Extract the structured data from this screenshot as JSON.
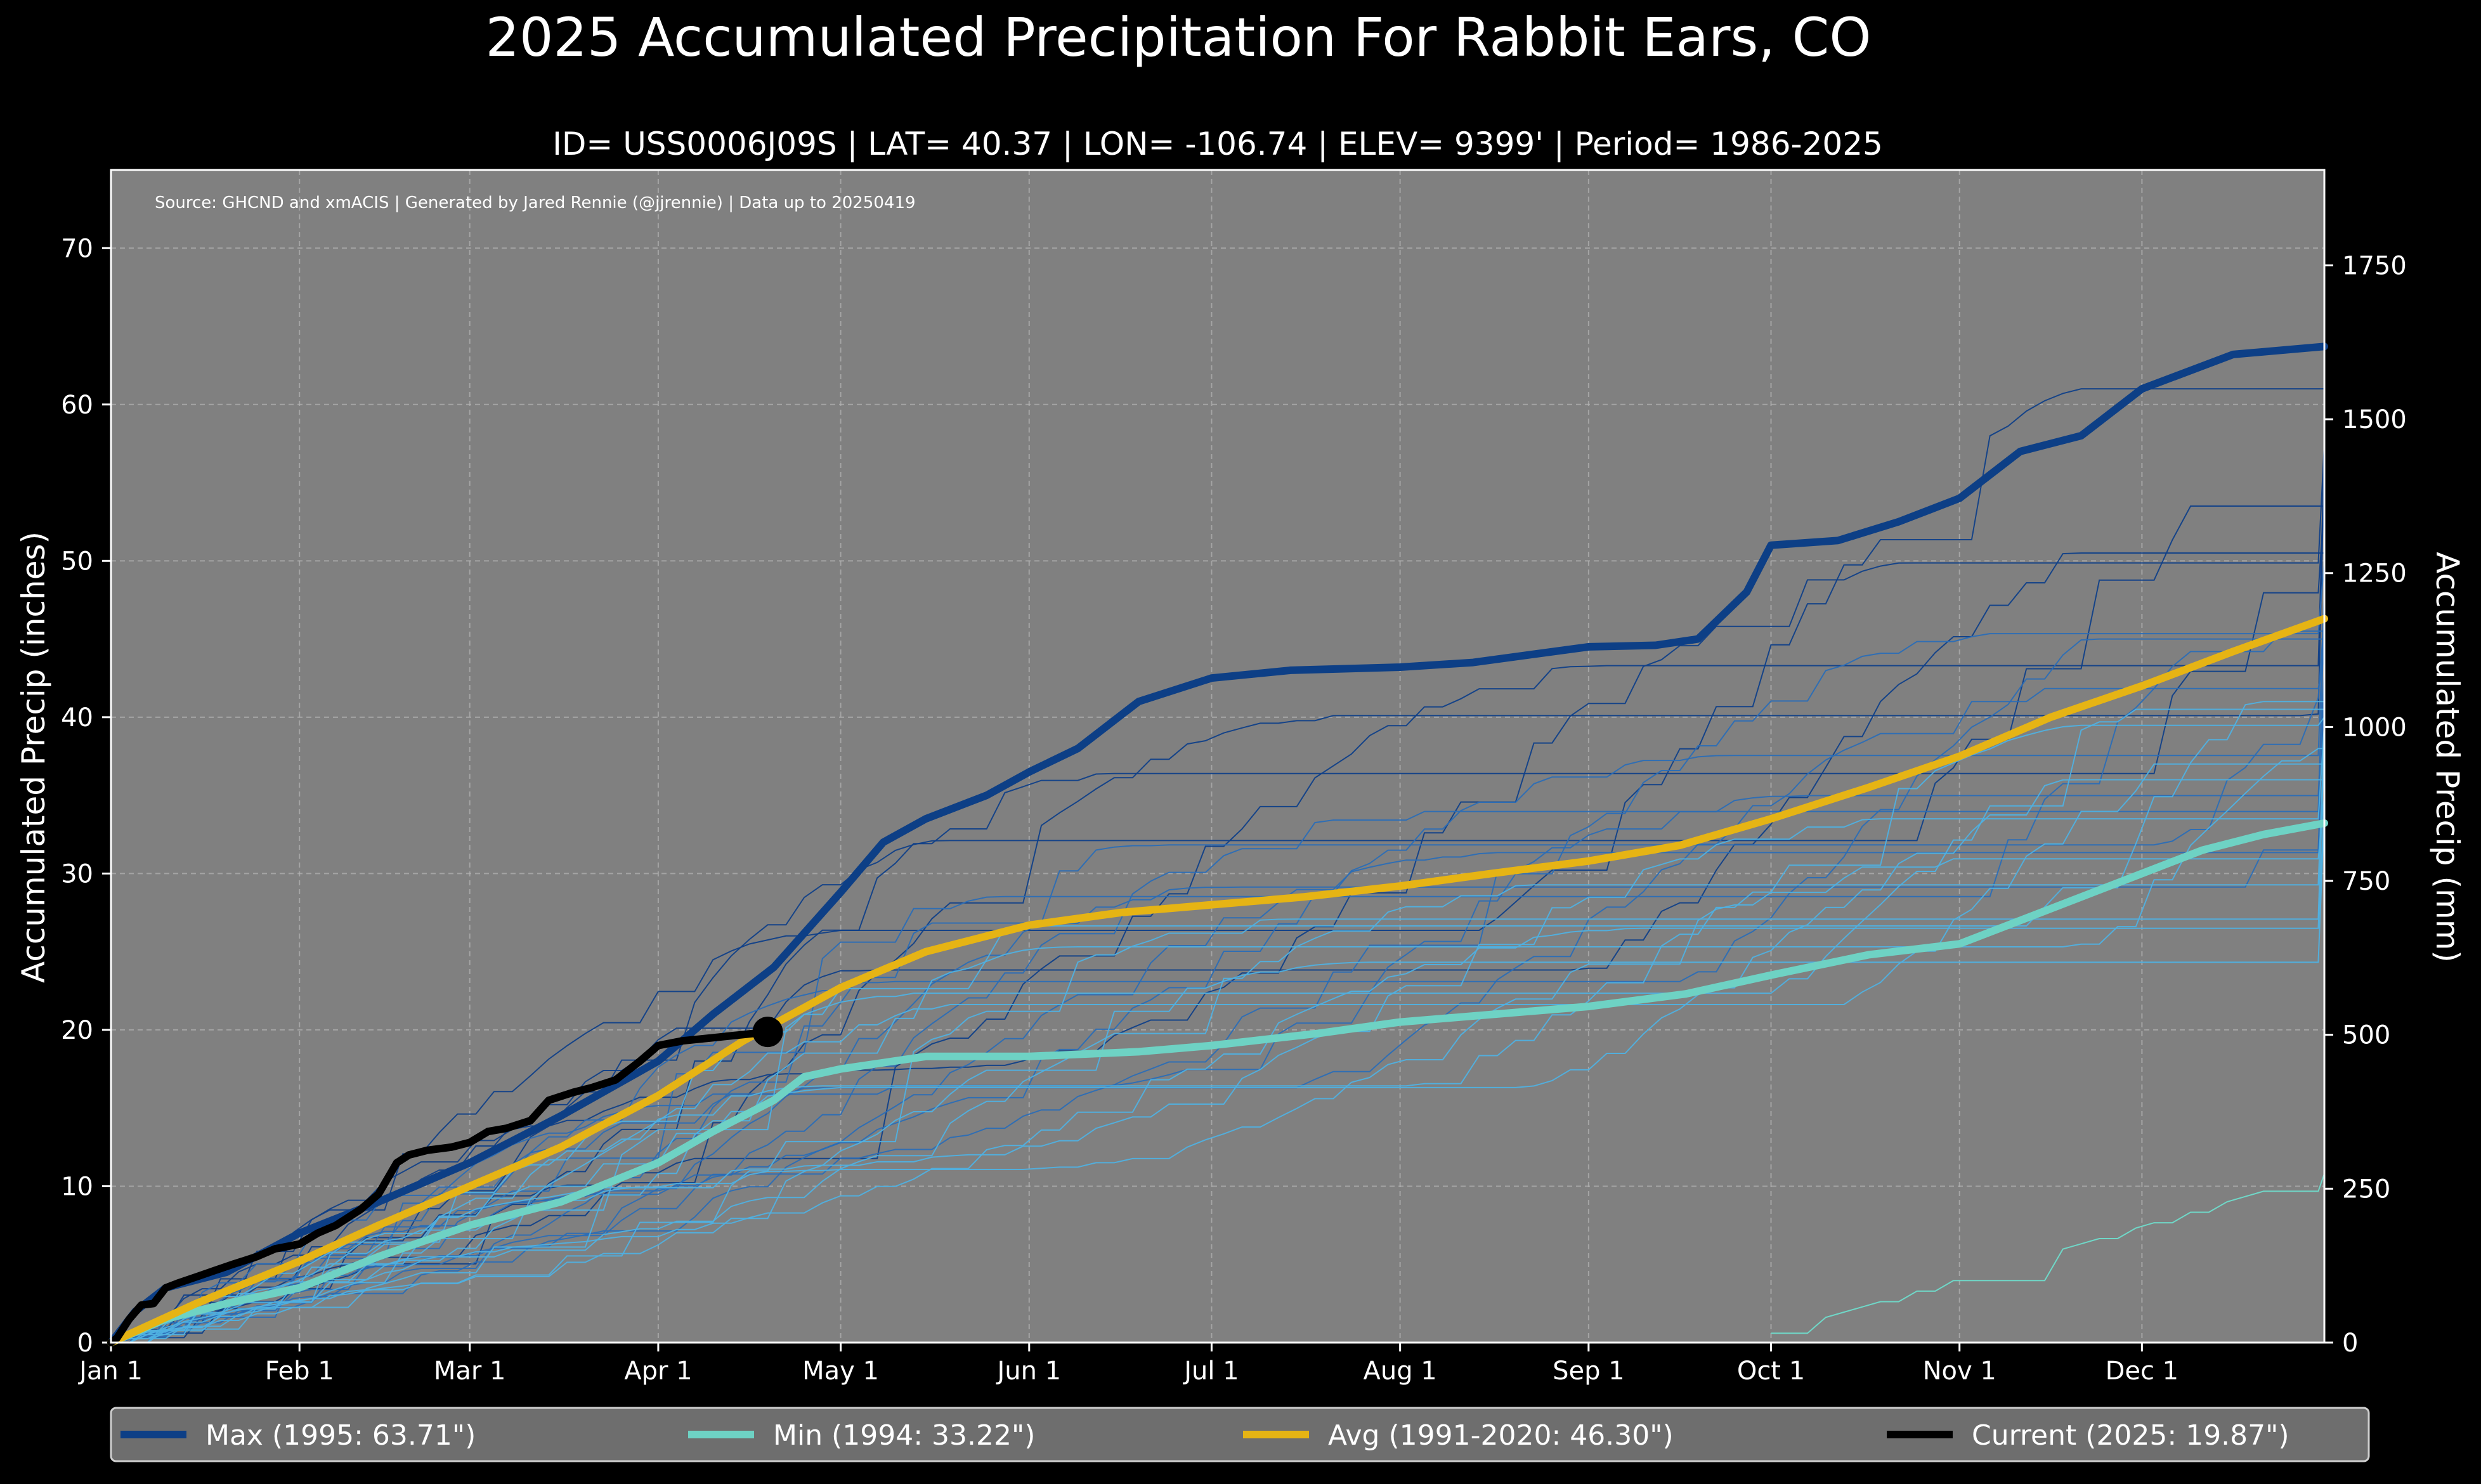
{
  "chart_data": {
    "type": "line",
    "title": "2025 Accumulated Precipitation For Rabbit Ears, CO",
    "subtitle": "ID= USS0006J09S | LAT= 40.37 | LON= -106.74 | ELEV= 9399' | Period= 1986-2025",
    "source_note": "Source: GHCND and xmACIS | Generated by Jared Rennie (@jjrennie) | Data up to 20250419",
    "xlabel": "",
    "ylabel": "Accumulated Precip (inches)",
    "ylabel_right": "Accumulated Precip (mm)",
    "xlim_day": [
      1,
      365
    ],
    "ylim": [
      0,
      75
    ],
    "ylim_right_mm": [
      0,
      1905
    ],
    "x_tick_labels": [
      "Jan 1",
      "Feb 1",
      "Mar 1",
      "Apr 1",
      "May 1",
      "Jun 1",
      "Jul 1",
      "Aug 1",
      "Sep 1",
      "Oct 1",
      "Nov 1",
      "Dec 1"
    ],
    "x_tick_days": [
      1,
      32,
      60,
      91,
      121,
      152,
      182,
      213,
      244,
      274,
      305,
      335
    ],
    "y_ticks": [
      0,
      10,
      20,
      30,
      40,
      50,
      60,
      70
    ],
    "y_ticks_right_mm": [
      0,
      250,
      500,
      750,
      1000,
      1250,
      1500,
      1750
    ],
    "grid": true,
    "colors": {
      "background": "#000000",
      "plot_bg": "#808080",
      "grid": "#b4b4b4",
      "max": "#0d3f86",
      "min": "#6ed2c4",
      "avg": "#e6b414",
      "current": "#000000",
      "legend_bg": "#6e6e6e",
      "year_dark": "#0f3f88",
      "year_mid": "#2a6db6",
      "year_light": "#4fb0e0"
    },
    "legend": {
      "placement": "bottom",
      "items": [
        {
          "key": "max",
          "label": "Max (1995:  63.71\")"
        },
        {
          "key": "min",
          "label": "Min (1994:  33.22\")"
        },
        {
          "key": "avg",
          "label": "Avg (1991-2020:  46.30\")"
        },
        {
          "key": "current",
          "label": "Current (2025:  19.87\")"
        }
      ]
    },
    "series": [
      {
        "key": "max",
        "name": "Max (1995)",
        "x": [
          1,
          5,
          10,
          20,
          32,
          45,
          60,
          75,
          91,
          100,
          110,
          121,
          128,
          135,
          145,
          152,
          160,
          170,
          182,
          195,
          213,
          225,
          244,
          255,
          262,
          270,
          274,
          285,
          295,
          305,
          315,
          325,
          335,
          350,
          365
        ],
        "values": [
          0,
          2,
          3.5,
          4.5,
          7,
          9,
          11.5,
          14.5,
          18,
          21,
          24,
          28.8,
          32,
          33.5,
          35,
          36.5,
          38,
          41,
          42.5,
          43,
          43.2,
          43.5,
          44.5,
          44.6,
          45,
          48,
          51,
          51.3,
          52.5,
          54,
          57,
          58,
          61,
          63.2,
          63.71
        ]
      },
      {
        "key": "min",
        "name": "Min (1994)",
        "x": [
          1,
          10,
          20,
          32,
          45,
          60,
          75,
          91,
          100,
          110,
          115,
          121,
          135,
          152,
          170,
          182,
          200,
          213,
          244,
          260,
          274,
          290,
          305,
          315,
          325,
          335,
          345,
          355,
          365
        ],
        "values": [
          0,
          1.5,
          2.5,
          3.5,
          5.5,
          7.5,
          9,
          11.5,
          13.5,
          15.5,
          17,
          17.5,
          18.3,
          18.3,
          18.6,
          19,
          19.8,
          20.5,
          21.5,
          22.3,
          23.5,
          24.8,
          25.5,
          27,
          28.5,
          30,
          31.5,
          32.5,
          33.22
        ]
      },
      {
        "key": "avg",
        "name": "Avg (1991-2020)",
        "x": [
          1,
          15,
          32,
          45,
          60,
          75,
          91,
          105,
          121,
          135,
          152,
          167,
          182,
          197,
          213,
          228,
          244,
          259,
          274,
          290,
          305,
          320,
          335,
          350,
          365
        ],
        "values": [
          0,
          2.5,
          5.2,
          7.5,
          10,
          12.5,
          15.8,
          19.3,
          22.7,
          25,
          26.7,
          27.5,
          28,
          28.5,
          29.2,
          30,
          30.8,
          31.8,
          33.5,
          35.5,
          37.5,
          40,
          42,
          44.2,
          46.3
        ]
      },
      {
        "key": "current",
        "name": "Current (2025)",
        "x": [
          1,
          2,
          4,
          6,
          8,
          10,
          12,
          15,
          18,
          21,
          25,
          28,
          32,
          35,
          38,
          42,
          45,
          48,
          50,
          53,
          57,
          60,
          63,
          66,
          70,
          73,
          77,
          80,
          84,
          88,
          91,
          95,
          100,
          105,
          109
        ],
        "values": [
          0,
          0.3,
          1.5,
          2.4,
          2.5,
          3.5,
          3.8,
          4.2,
          4.6,
          5.0,
          5.5,
          6.0,
          6.3,
          7.0,
          7.5,
          8.5,
          9.5,
          11.5,
          12.0,
          12.3,
          12.5,
          12.8,
          13.5,
          13.7,
          14.2,
          15.5,
          16.0,
          16.3,
          16.8,
          18.0,
          19.0,
          19.3,
          19.5,
          19.7,
          19.87
        ]
      }
    ],
    "year_traces": {
      "note": "Individual years (1986-2024) shown as thin lines; endpoints read from right edge",
      "final_totals": [
        61,
        57.5,
        57,
        56.5,
        54,
        53.5,
        50.5,
        50,
        48,
        47,
        46.5,
        45.5,
        45,
        44,
        43,
        42.5,
        42,
        41,
        40.5,
        40,
        39.5,
        39,
        38.5,
        38,
        37,
        36,
        35,
        34.5,
        34
      ],
      "partial_year_1986": {
        "start_day": 274,
        "start_value": 0.6,
        "end_value": 10.8
      }
    }
  }
}
